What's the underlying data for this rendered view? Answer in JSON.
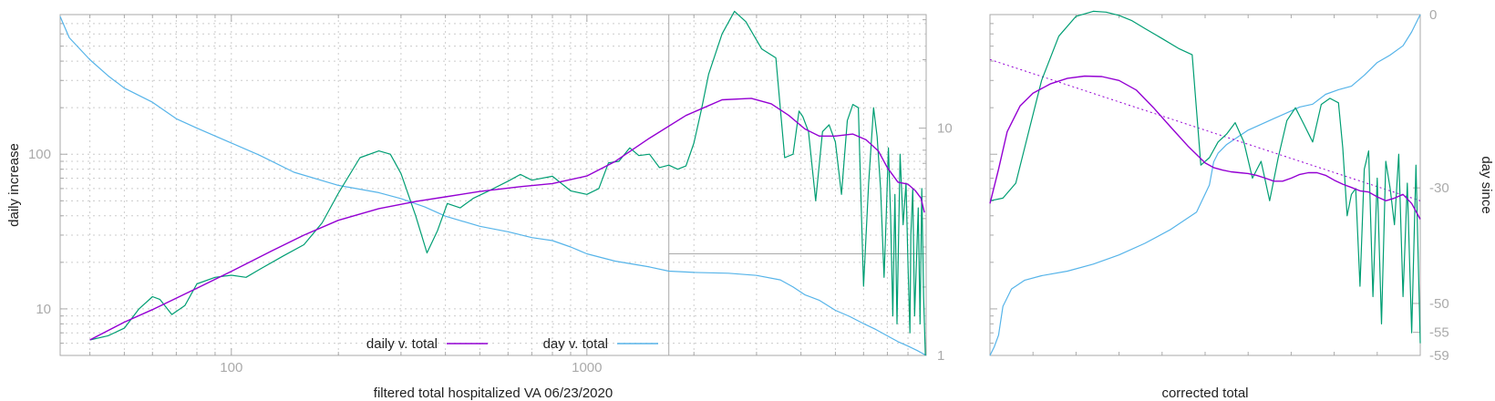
{
  "colors": {
    "daily_v_total": "#9400d3",
    "raw_daily": "#009e73",
    "day_v_total": "#56b4e9",
    "axis": "#aaaaaa",
    "grid": "#cccccc"
  },
  "chart_data": [
    {
      "type": "line",
      "title": "",
      "xlabel": "filtered total hospitalized VA 06/23/2020",
      "ylabel": "daily increase",
      "y2label": "",
      "xscale": "log",
      "yscale": "log",
      "y2scale": "log",
      "xlim": [
        33,
        9000
      ],
      "ylim": [
        5,
        800
      ],
      "y2lim": [
        1,
        31.6
      ],
      "xticks": [
        100,
        1000
      ],
      "xtick_labels": [
        "100",
        "1000"
      ],
      "yticks": [
        10,
        100
      ],
      "ytick_labels": [
        "10",
        "100"
      ],
      "y2ticks": [
        1,
        10
      ],
      "y2tick_labels": [
        "1",
        "10"
      ],
      "grid": true,
      "legend_position": "bottom-center",
      "inset_box": {
        "x": [
          1700,
          9000
        ],
        "y2": [
          1,
          2.8
        ]
      },
      "series": [
        {
          "name": "daily v. total",
          "axis": "y",
          "x": [
            40,
            50,
            60,
            80,
            100,
            130,
            160,
            200,
            260,
            330,
            400,
            500,
            650,
            800,
            1000,
            1200,
            1500,
            1900,
            2400,
            2900,
            3300,
            3700,
            4100,
            4500,
            5000,
            5600,
            6100,
            6600,
            7000,
            7500,
            8000,
            8400,
            8700,
            8900
          ],
          "y": [
            6.3,
            8.2,
            9.9,
            13.6,
            17.5,
            23.7,
            30.0,
            37.4,
            44.5,
            49.5,
            53.0,
            57.4,
            61.7,
            64.6,
            72.3,
            89.8,
            127,
            178,
            225,
            230,
            212,
            178,
            146,
            131,
            131,
            135,
            124,
            105,
            82,
            66,
            64,
            58,
            52,
            42
          ]
        },
        {
          "name": "",
          "axis": "y",
          "x": [
            40,
            45,
            50,
            55,
            60,
            63,
            68,
            74,
            80,
            90,
            100,
            110,
            120,
            140,
            160,
            180,
            200,
            230,
            260,
            280,
            300,
            330,
            355,
            380,
            405,
            440,
            480,
            530,
            600,
            650,
            700,
            800,
            900,
            1000,
            1080,
            1150,
            1230,
            1320,
            1400,
            1500,
            1600,
            1700,
            1800,
            1900,
            2000,
            2100,
            2200,
            2400,
            2600,
            2800,
            3100,
            3400,
            3600,
            3800,
            3950,
            4050,
            4200,
            4400,
            4600,
            4800,
            5000,
            5200,
            5400,
            5600,
            5800,
            6000,
            6200,
            6400,
            6550,
            6700,
            6850,
            6950,
            7050,
            7150,
            7250,
            7350,
            7450,
            7600,
            7750,
            7900,
            8000,
            8100,
            8150,
            8250,
            8350,
            8450,
            8550,
            8650,
            8750,
            8850,
            8950
          ],
          "y": [
            6.3,
            6.7,
            7.5,
            10,
            12,
            11.5,
            9.2,
            10.5,
            14.5,
            16,
            16.5,
            16,
            18,
            22,
            26,
            36,
            56,
            95,
            105,
            100,
            75,
            40,
            23,
            32,
            48,
            45,
            52,
            58,
            67,
            74,
            68,
            72,
            58,
            55,
            60,
            88,
            90,
            110,
            98,
            100,
            82,
            85,
            80,
            84,
            118,
            195,
            330,
            600,
            840,
            720,
            480,
            420,
            95,
            100,
            190,
            175,
            140,
            50,
            140,
            155,
            120,
            55,
            165,
            210,
            200,
            14,
            65,
            200,
            130,
            60,
            16,
            40,
            110,
            40,
            9,
            55,
            8,
            100,
            35,
            65,
            20,
            7,
            30,
            60,
            9,
            20,
            45,
            8,
            60,
            12,
            5
          ]
        },
        {
          "name": "day v. total",
          "axis": "y2",
          "x": [
            33,
            35,
            40,
            45,
            50,
            60,
            70,
            80,
            100,
            120,
            150,
            200,
            260,
            300,
            350,
            400,
            500,
            600,
            700,
            800,
            900,
            1000,
            1200,
            1500,
            1700,
            2000,
            2500,
            3000,
            3500,
            3800,
            4100,
            4500,
            5000,
            5500,
            6000,
            6500,
            7000,
            7500,
            8000,
            8500,
            9000
          ],
          "y": [
            31,
            25,
            20,
            17,
            15,
            13,
            11,
            10,
            8.6,
            7.6,
            6.4,
            5.6,
            5.2,
            4.9,
            4.5,
            4.1,
            3.7,
            3.5,
            3.3,
            3.2,
            3.0,
            2.8,
            2.6,
            2.45,
            2.35,
            2.32,
            2.3,
            2.25,
            2.15,
            2.0,
            1.85,
            1.75,
            1.58,
            1.48,
            1.38,
            1.3,
            1.22,
            1.15,
            1.1,
            1.05,
            1.0
          ]
        }
      ]
    },
    {
      "type": "line",
      "title": "",
      "xlabel": "corrected total",
      "ylabel": "",
      "y2label": "day since",
      "xlim": [
        0,
        100
      ],
      "ylim": [
        5,
        800
      ],
      "yscale": "log",
      "y2lim": [
        -59,
        0
      ],
      "y2ticks": [
        0,
        -30,
        -50,
        -55,
        -59
      ],
      "y2tick_labels": [
        "0",
        "-30",
        "-50",
        "-55",
        "-59"
      ],
      "series": [
        {
          "name": "",
          "axis": "y",
          "x": [
            0,
            2,
            4,
            7,
            10,
            14,
            18,
            22,
            26,
            30,
            34,
            38,
            42,
            46,
            50,
            52,
            54,
            56,
            58,
            60,
            62,
            64,
            66,
            68,
            70,
            72,
            74,
            76,
            78,
            80,
            82,
            84,
            86,
            88,
            90,
            92,
            94,
            96,
            98,
            100
          ],
          "y": [
            48,
            80,
            140,
            205,
            248,
            285,
            310,
            320,
            318,
            300,
            260,
            200,
            150,
            113,
            88,
            82,
            79,
            77,
            76,
            75,
            73,
            70,
            67,
            67,
            70,
            74,
            76,
            76,
            73,
            68,
            64,
            61,
            58,
            57,
            53,
            50,
            52,
            55,
            48,
            38
          ]
        },
        {
          "name": "",
          "axis": "y",
          "x": [
            0,
            3,
            6,
            9,
            12,
            16,
            20,
            24,
            27,
            30,
            33,
            36,
            40,
            44,
            47,
            49,
            51,
            53,
            55,
            57,
            59,
            61,
            63,
            65,
            67,
            69,
            71,
            73,
            75,
            77,
            79,
            81,
            82,
            83,
            84,
            85,
            86,
            87,
            88,
            89,
            90,
            91,
            92,
            93,
            94,
            95,
            96,
            97,
            98,
            99,
            100
          ],
          "y": [
            50,
            52,
            65,
            140,
            300,
            580,
            780,
            840,
            830,
            790,
            730,
            650,
            560,
            480,
            440,
            85,
            95,
            120,
            135,
            160,
            120,
            70,
            90,
            50,
            95,
            165,
            200,
            155,
            120,
            210,
            230,
            215,
            110,
            40,
            55,
            60,
            14,
            80,
            105,
            12,
            70,
            8,
            90,
            60,
            35,
            100,
            12,
            65,
            7,
            85,
            6
          ]
        },
        {
          "name": "",
          "axis": "y",
          "dashed": true,
          "x": [
            0,
            100
          ],
          "y": [
            410,
            50
          ]
        },
        {
          "name": "",
          "axis": "y2",
          "x": [
            0,
            1,
            2,
            3,
            5,
            8,
            12,
            18,
            24,
            30,
            36,
            42,
            48,
            51,
            52,
            53,
            55,
            57,
            60,
            63,
            66,
            69,
            72,
            75,
            78,
            81,
            84,
            87,
            90,
            93,
            96,
            98,
            100
          ],
          "y": [
            -59,
            -57.5,
            -55.5,
            -50.5,
            -47.5,
            -46,
            -45.2,
            -44.4,
            -43.2,
            -41.6,
            -39.6,
            -37.2,
            -34.2,
            -29.5,
            -25.5,
            -24,
            -22.5,
            -21.5,
            -20,
            -19,
            -18,
            -17,
            -16,
            -15.5,
            -13.8,
            -13,
            -12.4,
            -10.5,
            -8.3,
            -7,
            -5.4,
            -3,
            0
          ]
        }
      ]
    }
  ],
  "legend": [
    {
      "label": "daily v. total",
      "color_key": "daily_v_total"
    },
    {
      "label": "day v. total",
      "color_key": "day_v_total"
    }
  ]
}
